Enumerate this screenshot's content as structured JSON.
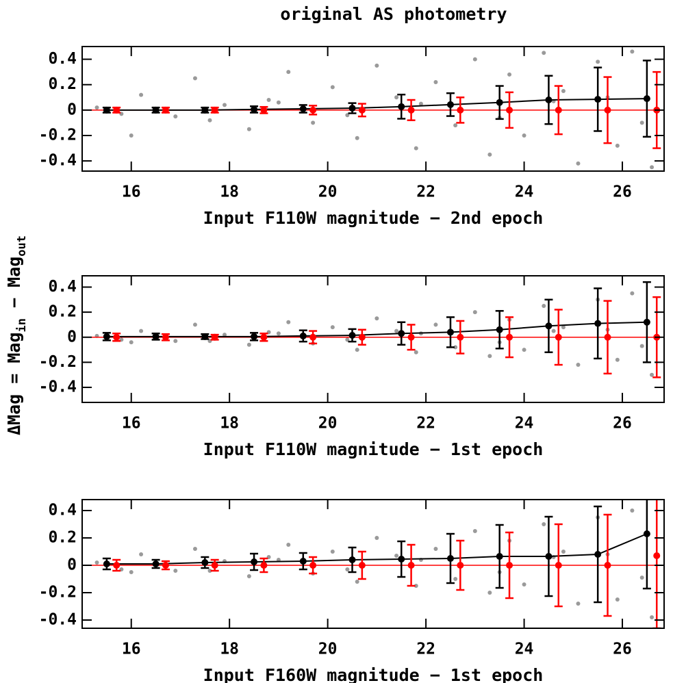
{
  "title": "original AS photometry",
  "ylabel": [
    "ΔMag = Mag",
    "in",
    " − Mag",
    "out"
  ],
  "chart_data": [
    {
      "type": "scatter",
      "xlabel": "Input F110W magnitude − 2nd epoch",
      "xlim": [
        15,
        26.85
      ],
      "ylim": [
        -0.48,
        0.5
      ],
      "xticks": [
        16,
        18,
        20,
        22,
        24,
        26
      ],
      "yticks": [
        0.4,
        0.2,
        0,
        -0.2,
        -0.4
      ],
      "hline": 0,
      "hline_color": "#ff0000",
      "series": [
        {
          "color": "#9a9a9a",
          "x": [
            15.3,
            15.8,
            16.2,
            16.9,
            17.3,
            17.9,
            18.4,
            18.8,
            19.2,
            19.7,
            20.1,
            20.6,
            21.0,
            21.4,
            21.8,
            22.2,
            22.6,
            23.0,
            23.3,
            23.7,
            24.0,
            24.4,
            24.8,
            25.1,
            25.5,
            25.9,
            26.2,
            26.6,
            16.0,
            17.6,
            19.0,
            20.4,
            21.9,
            23.5,
            24.6,
            25.7,
            26.4
          ],
          "values": [
            0.02,
            -0.03,
            0.12,
            -0.05,
            0.25,
            0.04,
            -0.15,
            0.08,
            0.3,
            -0.1,
            0.18,
            -0.22,
            0.35,
            0.1,
            -0.3,
            0.22,
            -0.12,
            0.4,
            -0.35,
            0.28,
            -0.2,
            0.45,
            0.15,
            -0.42,
            0.38,
            -0.28,
            0.46,
            -0.45,
            -0.2,
            -0.08,
            0.06,
            -0.04,
            0.05,
            -0.06,
            0.07,
            0.1,
            -0.1
          ]
        },
        {
          "color": "#000000",
          "line": true,
          "x": [
            15.5,
            16.5,
            17.5,
            18.5,
            19.5,
            20.5,
            21.5,
            22.5,
            23.5,
            24.5,
            25.5,
            26.5
          ],
          "values": [
            0,
            0,
            0,
            0.005,
            0.01,
            0.015,
            0.027,
            0.043,
            0.06,
            0.08,
            0.085,
            0.09
          ],
          "errors": [
            0.02,
            0.02,
            0.02,
            0.025,
            0.03,
            0.04,
            0.095,
            0.09,
            0.13,
            0.19,
            0.25,
            0.3
          ]
        },
        {
          "color": "#ff0000",
          "x": [
            15.7,
            16.7,
            17.7,
            18.7,
            19.7,
            20.7,
            21.7,
            22.7,
            23.7,
            24.7,
            25.7,
            26.7
          ],
          "values": [
            0,
            0,
            0,
            0,
            0,
            0,
            0,
            0,
            0,
            0,
            0,
            0
          ],
          "errors": [
            0.02,
            0.02,
            0.02,
            0.025,
            0.035,
            0.05,
            0.08,
            0.1,
            0.14,
            0.19,
            0.26,
            0.3
          ]
        }
      ]
    },
    {
      "type": "scatter",
      "xlabel": "Input F110W magnitude − 1st epoch",
      "xlim": [
        15,
        26.85
      ],
      "ylim": [
        -0.52,
        0.49
      ],
      "xticks": [
        16,
        18,
        20,
        22,
        24,
        26
      ],
      "yticks": [
        0.4,
        0.2,
        0,
        -0.2,
        -0.4
      ],
      "hline": 0,
      "hline_color": "#ff0000",
      "series": [
        {
          "color": "#9a9a9a",
          "x": [
            15.3,
            15.8,
            16.2,
            16.9,
            17.3,
            17.9,
            18.4,
            18.8,
            19.2,
            19.7,
            20.1,
            20.6,
            21.0,
            21.4,
            21.8,
            22.2,
            22.6,
            23.0,
            23.3,
            23.7,
            24.0,
            24.4,
            24.8,
            25.1,
            25.5,
            25.9,
            26.2,
            26.6,
            16.0,
            17.6,
            19.0,
            20.4,
            21.9,
            23.5,
            24.6,
            25.7,
            26.4
          ],
          "values": [
            0.01,
            -0.02,
            0.05,
            -0.03,
            0.1,
            0.02,
            -0.06,
            0.04,
            0.12,
            -0.05,
            0.08,
            -0.1,
            0.15,
            0.05,
            -0.12,
            0.1,
            -0.08,
            0.2,
            -0.15,
            0.14,
            -0.1,
            0.25,
            0.08,
            -0.22,
            0.3,
            -0.18,
            0.35,
            -0.3,
            -0.04,
            -0.03,
            0.03,
            -0.02,
            0.03,
            -0.04,
            0.05,
            0.06,
            -0.07
          ]
        },
        {
          "color": "#000000",
          "line": true,
          "x": [
            15.5,
            16.5,
            17.5,
            18.5,
            19.5,
            20.5,
            21.5,
            22.5,
            23.5,
            24.5,
            25.5,
            26.5
          ],
          "values": [
            0.005,
            0.005,
            0.005,
            0.005,
            0.01,
            0.015,
            0.03,
            0.04,
            0.06,
            0.09,
            0.11,
            0.12
          ],
          "errors": [
            0.03,
            0.025,
            0.02,
            0.03,
            0.045,
            0.05,
            0.09,
            0.12,
            0.15,
            0.21,
            0.28,
            0.32
          ]
        },
        {
          "color": "#ff0000",
          "x": [
            15.7,
            16.7,
            17.7,
            18.7,
            19.7,
            20.7,
            21.7,
            22.7,
            23.7,
            24.7,
            25.7,
            26.7
          ],
          "values": [
            0,
            0,
            0,
            0,
            0,
            0,
            0,
            0,
            0,
            0,
            0,
            0
          ],
          "errors": [
            0.03,
            0.025,
            0.02,
            0.03,
            0.05,
            0.06,
            0.1,
            0.13,
            0.16,
            0.22,
            0.29,
            0.32
          ]
        }
      ]
    },
    {
      "type": "scatter",
      "xlabel": "Input F160W magnitude − 1st epoch",
      "xlim": [
        15,
        26.85
      ],
      "ylim": [
        -0.46,
        0.48
      ],
      "xticks": [
        16,
        18,
        20,
        22,
        24,
        26
      ],
      "yticks": [
        0.4,
        0.2,
        0,
        -0.2,
        -0.4
      ],
      "hline": 0,
      "hline_color": "#ff0000",
      "series": [
        {
          "color": "#9a9a9a",
          "x": [
            15.3,
            15.8,
            16.2,
            16.9,
            17.3,
            17.9,
            18.4,
            18.8,
            19.2,
            19.7,
            20.1,
            20.6,
            21.0,
            21.4,
            21.8,
            22.2,
            22.6,
            23.0,
            23.3,
            23.7,
            24.0,
            24.4,
            24.8,
            25.1,
            25.5,
            25.9,
            26.2,
            26.6,
            16.0,
            17.6,
            19.0,
            20.4,
            21.9,
            23.5,
            24.6,
            25.7,
            26.4
          ],
          "values": [
            0.02,
            -0.03,
            0.08,
            -0.04,
            0.12,
            0.03,
            -0.08,
            0.06,
            0.15,
            -0.06,
            0.1,
            -0.12,
            0.2,
            0.07,
            -0.15,
            0.12,
            -0.1,
            0.25,
            -0.2,
            0.18,
            -0.14,
            0.3,
            0.1,
            -0.28,
            0.35,
            -0.25,
            0.4,
            -0.38,
            -0.05,
            -0.04,
            0.04,
            -0.03,
            0.04,
            -0.05,
            0.06,
            0.08,
            -0.09
          ]
        },
        {
          "color": "#000000",
          "line": true,
          "x": [
            15.5,
            16.5,
            17.5,
            18.5,
            19.5,
            20.5,
            21.5,
            22.5,
            23.5,
            24.5,
            25.5,
            26.5
          ],
          "values": [
            0.01,
            0.01,
            0.02,
            0.025,
            0.03,
            0.04,
            0.045,
            0.05,
            0.065,
            0.065,
            0.08,
            0.23
          ],
          "errors": [
            0.04,
            0.03,
            0.04,
            0.06,
            0.06,
            0.09,
            0.13,
            0.18,
            0.23,
            0.29,
            0.35,
            0.4
          ]
        },
        {
          "color": "#ff0000",
          "x": [
            15.7,
            16.7,
            17.7,
            18.7,
            19.7,
            20.7,
            21.7,
            22.7,
            23.7,
            24.7,
            25.7,
            26.7
          ],
          "values": [
            0,
            0,
            0,
            0,
            0,
            0,
            0,
            0,
            0,
            0,
            0,
            0.07
          ],
          "errors": [
            0.04,
            0.03,
            0.04,
            0.05,
            0.06,
            0.1,
            0.15,
            0.18,
            0.24,
            0.3,
            0.37,
            0.53
          ]
        }
      ]
    }
  ]
}
